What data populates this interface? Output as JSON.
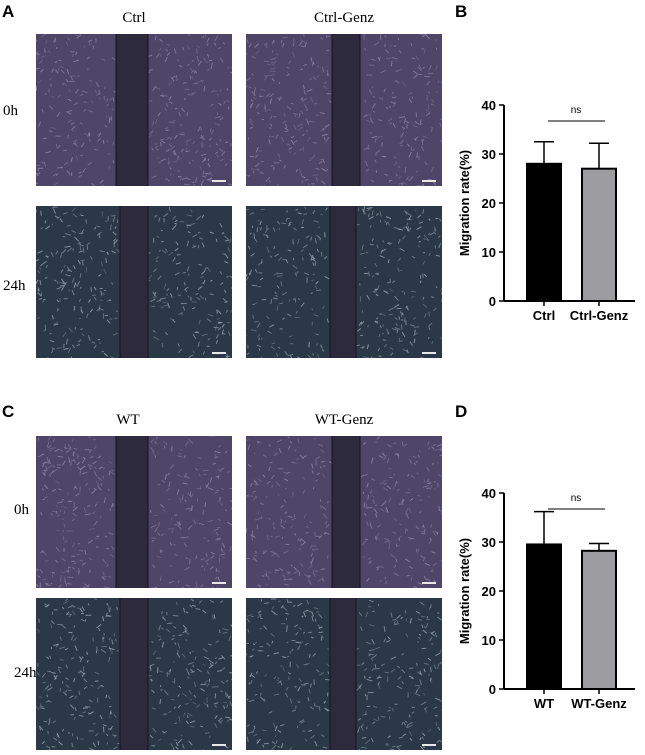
{
  "panels": {
    "A": {
      "letter": "A",
      "columns": [
        "Ctrl",
        "Ctrl-Genz"
      ],
      "rows": [
        "0h",
        "24h"
      ]
    },
    "B": {
      "letter": "B"
    },
    "C": {
      "letter": "C",
      "columns": [
        "WT",
        "WT-Genz"
      ],
      "rows": [
        "0h",
        "24h"
      ]
    },
    "D": {
      "letter": "D"
    }
  },
  "colors": {
    "bar_first": "#000000",
    "bar_second": "#9d9da0",
    "micro_purple_base": "#4e4668",
    "micro_purple_texture": "#8f87aa",
    "micro_teal_base": "#2b3847",
    "micro_teal_texture": "#9aa9b4",
    "scratch": "#2d2a3e"
  },
  "chart_data": [
    {
      "type": "bar",
      "panel": "B",
      "categories": [
        "Ctrl",
        "Ctrl-Genz"
      ],
      "values": [
        28,
        27
      ],
      "error_upper": [
        32.5,
        32.2
      ],
      "ylabel": "Migration rate(%)",
      "ylim": [
        0,
        40
      ],
      "yticks": [
        0,
        10,
        20,
        30,
        40
      ],
      "annotation": "ns",
      "grid": false
    },
    {
      "type": "bar",
      "panel": "D",
      "categories": [
        "WT",
        "WT-Genz"
      ],
      "values": [
        29.5,
        28.2
      ],
      "error_upper": [
        36.2,
        29.7
      ],
      "ylabel": "Migration rate(%)",
      "ylim": [
        0,
        40
      ],
      "yticks": [
        0,
        10,
        20,
        30,
        40
      ],
      "annotation": "ns",
      "grid": false
    }
  ]
}
